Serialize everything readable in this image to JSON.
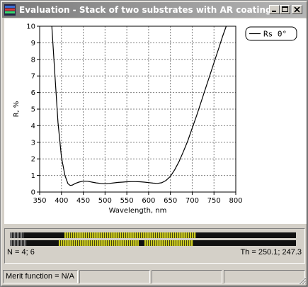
{
  "window": {
    "title": "Evaluation - Stack of two substrates with AR coatings",
    "buttons": {
      "minimize": "minimize-icon",
      "maximize": "maximize-icon",
      "close": "close-icon"
    }
  },
  "colors": {
    "titlebar_start": "#7b7b7b",
    "titlebar_end": "#b5b5b5",
    "curve": "#000000",
    "grid": "#808080",
    "coating_yellow": "#c8c820",
    "coating_black": "#111111"
  },
  "chart_data": {
    "type": "line",
    "xlabel": "Wavelength, nm",
    "ylabel": "R, %",
    "xlim": [
      350,
      800
    ],
    "ylim": [
      0,
      10
    ],
    "xticks": [
      350,
      400,
      450,
      500,
      550,
      600,
      650,
      700,
      750,
      800
    ],
    "yticks": [
      0,
      1,
      2,
      3,
      4,
      5,
      6,
      7,
      8,
      9,
      10
    ],
    "grid": true,
    "legend": {
      "placement": "top-right",
      "entries": [
        "Rs  0°"
      ]
    },
    "series": [
      {
        "name": "Rs  0°",
        "x": [
          378,
          385,
          392,
          400,
          408,
          415,
          420,
          425,
          432,
          440,
          450,
          460,
          470,
          480,
          490,
          500,
          510,
          520,
          530,
          540,
          550,
          560,
          570,
          580,
          590,
          600,
          610,
          620,
          630,
          640,
          650,
          660,
          670,
          680,
          690,
          700,
          710,
          720,
          730,
          740,
          750,
          760,
          770,
          778
        ],
        "y": [
          10.0,
          7.1,
          4.2,
          2.1,
          1.0,
          0.5,
          0.4,
          0.42,
          0.52,
          0.6,
          0.66,
          0.65,
          0.6,
          0.55,
          0.52,
          0.5,
          0.52,
          0.55,
          0.58,
          0.6,
          0.62,
          0.63,
          0.63,
          0.62,
          0.6,
          0.57,
          0.54,
          0.52,
          0.56,
          0.7,
          0.95,
          1.35,
          1.85,
          2.45,
          3.1,
          3.85,
          4.6,
          5.4,
          6.2,
          7.0,
          7.8,
          8.6,
          9.4,
          10.0
        ]
      }
    ]
  },
  "stack_panel": {
    "n_text": "N = 4; 6",
    "th_text": "Th = 250.1; 247.3",
    "bar1": [
      {
        "kind": "hatch",
        "from": 0.0,
        "to": 0.05
      },
      {
        "kind": "black",
        "from": 0.05,
        "to": 0.19
      },
      {
        "kind": "yellow",
        "from": 0.19,
        "to": 0.65
      },
      {
        "kind": "black",
        "from": 0.65,
        "to": 1.0
      }
    ],
    "bar2": [
      {
        "kind": "hatch",
        "from": 0.0,
        "to": 0.06
      },
      {
        "kind": "black",
        "from": 0.06,
        "to": 0.17
      },
      {
        "kind": "yellow",
        "from": 0.17,
        "to": 0.45
      },
      {
        "kind": "black",
        "from": 0.45,
        "to": 0.47
      },
      {
        "kind": "yellow",
        "from": 0.47,
        "to": 0.64
      },
      {
        "kind": "black",
        "from": 0.64,
        "to": 1.0
      }
    ]
  },
  "statusbar": {
    "merit": "Merit function = N/A",
    "cell2": "",
    "cell3": "",
    "cell4": ""
  }
}
